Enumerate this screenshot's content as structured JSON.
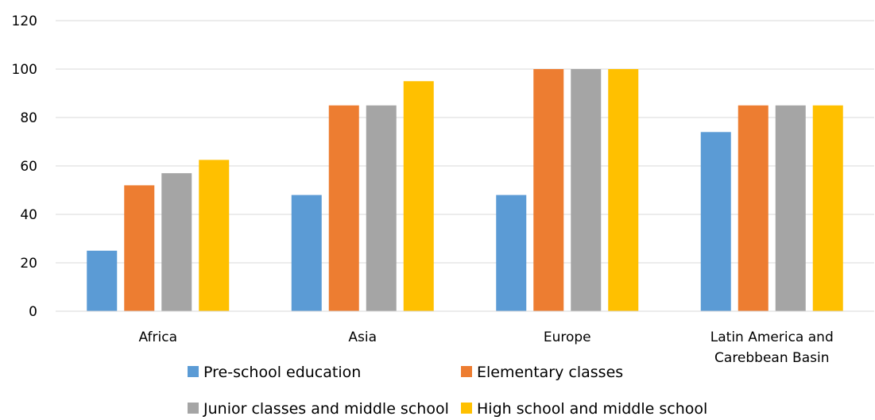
{
  "chart_data": {
    "type": "bar",
    "title": "",
    "xlabel": "",
    "ylabel": "",
    "ylim": [
      0,
      120
    ],
    "yticks": [
      0,
      20,
      40,
      60,
      80,
      100,
      120
    ],
    "grid": true,
    "legend_position": "bottom",
    "categories": [
      [
        "Africa"
      ],
      [
        "Asia"
      ],
      [
        "Europe"
      ],
      [
        "Latin America and",
        "Carebbean Basin"
      ]
    ],
    "series": [
      {
        "name": "Pre-school education",
        "color": "#5B9BD5",
        "values": [
          25,
          48,
          48,
          74
        ]
      },
      {
        "name": "Elementary classes",
        "color": "#ED7D31",
        "values": [
          52,
          85,
          100,
          85
        ]
      },
      {
        "name": "Junior classes and middle school",
        "color": "#A5A5A5",
        "values": [
          57,
          85,
          100,
          85
        ]
      },
      {
        "name": "High school and middle school",
        "color": "#FFC000",
        "values": [
          62.5,
          95,
          100,
          85
        ]
      }
    ]
  }
}
